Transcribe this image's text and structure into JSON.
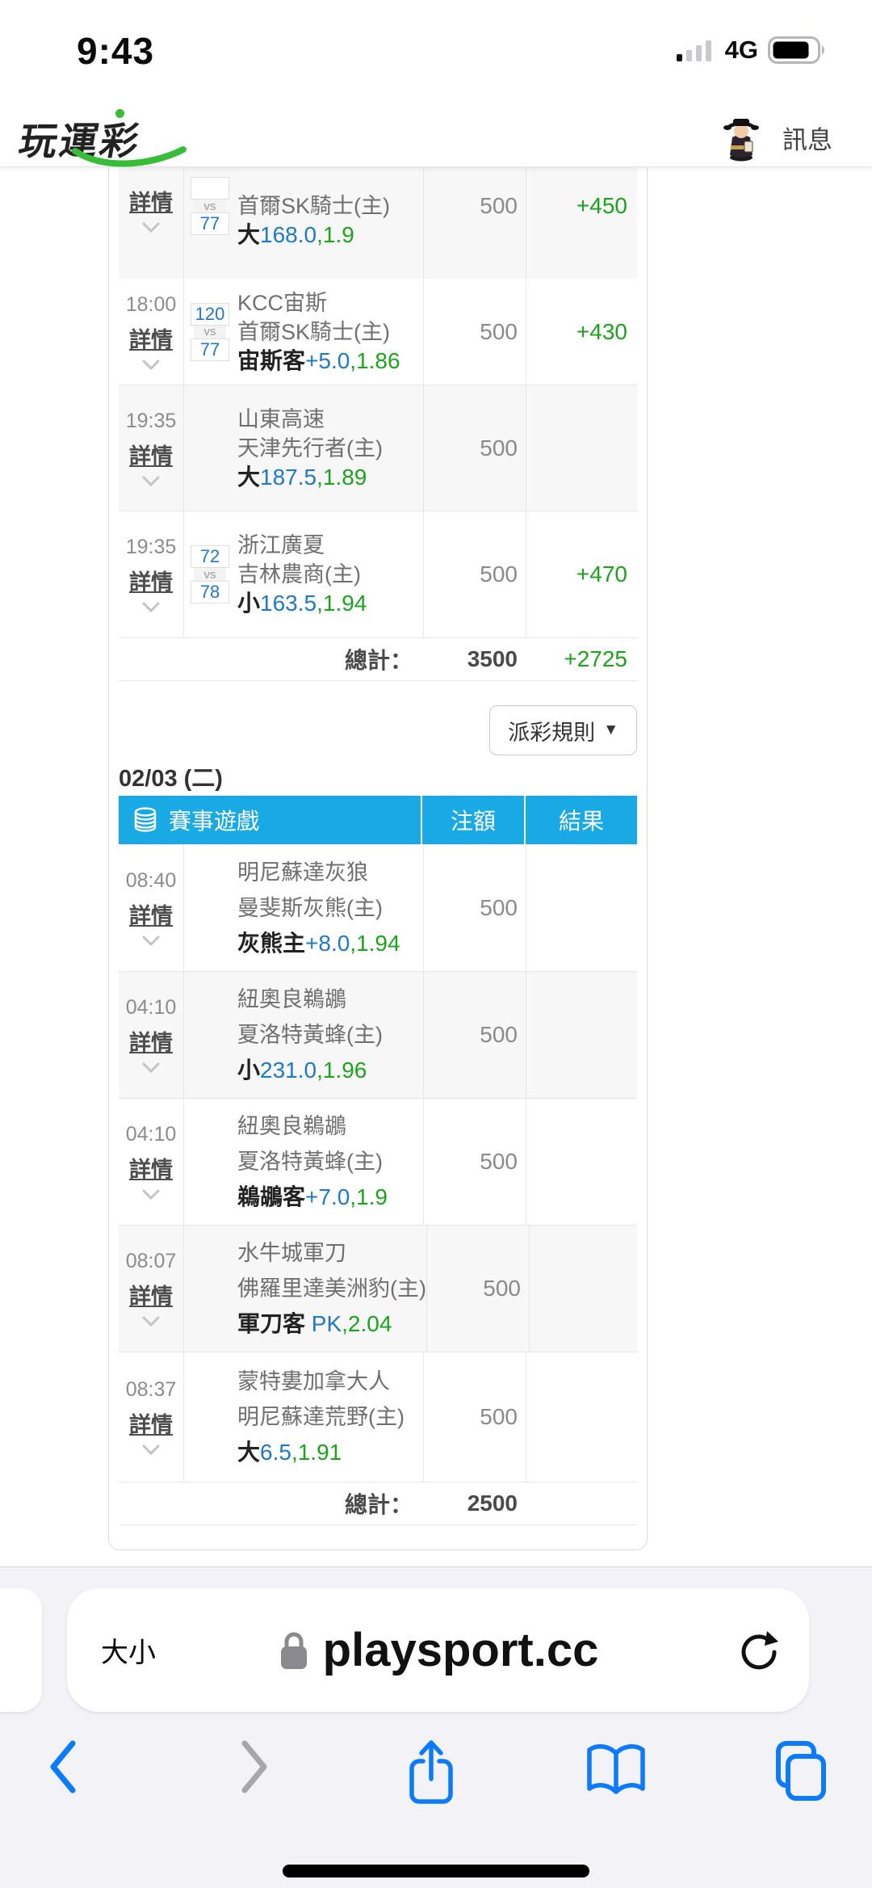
{
  "status_bar": {
    "time": "9:43",
    "network": "4G"
  },
  "header": {
    "logo": "玩運彩",
    "messages_label": "訊息"
  },
  "payout": {
    "label": "派彩規則",
    "arrow": "▼"
  },
  "colors": {
    "table_header_blue": "#19a9e5",
    "score_odds_blue": "#1f79c9",
    "result_green": "#1ca41c",
    "safari_blue": "#0a7aff"
  },
  "tables": [
    {
      "rows": [
        {
          "time": "",
          "detail": "詳情",
          "clipped": true,
          "shaded": true,
          "score_away": "",
          "vs": "vs",
          "score_home": "77",
          "team_away": "",
          "team_home": "首爾SK騎士(主)",
          "bet_main": "大",
          "bet_line": "168.0",
          "bet_odds": ",1.9",
          "amount": "500",
          "result": "+450"
        },
        {
          "time": "18:00",
          "detail": "詳情",
          "shaded": false,
          "score_away": "120",
          "vs": "vs",
          "score_home": "77",
          "team_away": "KCC宙斯",
          "team_home": "首爾SK騎士(主)",
          "bet_main": "宙斯客",
          "bet_line": "+5.0",
          "bet_odds": ",1.86",
          "amount": "500",
          "result": "+430"
        },
        {
          "time": "19:35",
          "detail": "詳情",
          "shaded": true,
          "team_away": "山東高速",
          "team_home": "天津先行者(主)",
          "bet_main": "大",
          "bet_line": "187.5",
          "bet_odds": ",1.89",
          "amount": "500",
          "result": ""
        },
        {
          "time": "19:35",
          "detail": "詳情",
          "shaded": false,
          "score_away": "72",
          "vs": "vs",
          "score_home": "78",
          "team_away": "浙江廣夏",
          "team_home": "吉林農商(主)",
          "bet_main": "小",
          "bet_line": "163.5",
          "bet_odds": ",1.94",
          "amount": "500",
          "result": "+470"
        }
      ],
      "total": {
        "label": "總計：",
        "amount": "3500",
        "result": "+2725"
      }
    },
    {
      "date_label": "02/03 (二)",
      "header": {
        "game": "賽事遊戲",
        "amount": "注額",
        "result": "結果"
      },
      "rows": [
        {
          "time": "08:40",
          "detail": "詳情",
          "shaded": false,
          "team_away": "明尼蘇達灰狼",
          "team_home": "曼斐斯灰熊(主)",
          "bet_main": "灰熊主",
          "bet_line": "+8.0",
          "bet_odds": ",1.94",
          "amount": "500",
          "result": ""
        },
        {
          "time": "04:10",
          "detail": "詳情",
          "shaded": true,
          "team_away": "紐奧良鵜鶘",
          "team_home": "夏洛特黃蜂(主)",
          "bet_main": "小",
          "bet_line": "231.0",
          "bet_odds": ",1.96",
          "amount": "500",
          "result": ""
        },
        {
          "time": "04:10",
          "detail": "詳情",
          "shaded": false,
          "team_away": "紐奧良鵜鶘",
          "team_home": "夏洛特黃蜂(主)",
          "bet_main": "鵜鶘客",
          "bet_line": "+7.0",
          "bet_odds": ",1.9",
          "amount": "500",
          "result": ""
        },
        {
          "time": "08:07",
          "detail": "詳情",
          "shaded": true,
          "team_away": "水牛城軍刀",
          "team_home": "佛羅里達美洲豹(主)",
          "bet_main": "軍刀客",
          "bet_line": " PK",
          "bet_odds": ",2.04",
          "amount": "500",
          "result": ""
        },
        {
          "time": "08:37",
          "detail": "詳情",
          "shaded": false,
          "team_away": "蒙特婁加拿大人",
          "team_home": "明尼蘇達荒野(主)",
          "bet_main": "大",
          "bet_line": "6.5",
          "bet_odds": ",1.91",
          "amount": "500",
          "result": ""
        }
      ],
      "total": {
        "label": "總計：",
        "amount": "2500",
        "result": ""
      }
    }
  ],
  "browser": {
    "textsize_label": "大小",
    "url": "playsport.cc"
  }
}
